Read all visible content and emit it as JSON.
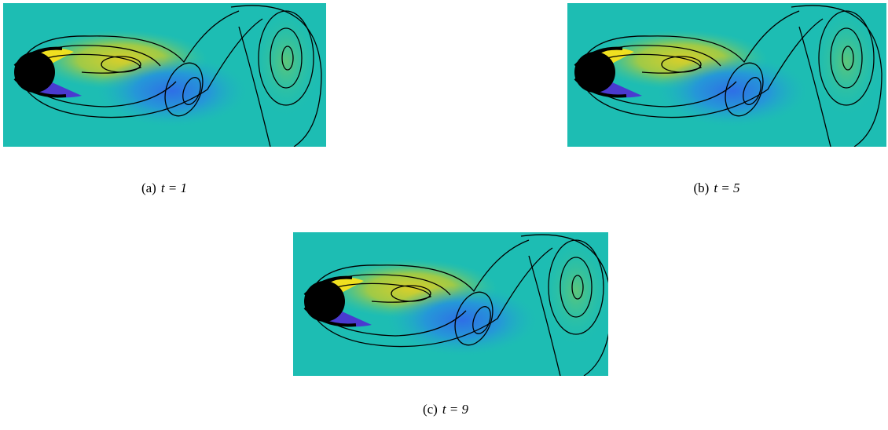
{
  "panels": [
    {
      "label": "(a)",
      "math": "t = 1"
    },
    {
      "label": "(b)",
      "math": "t = 5"
    },
    {
      "label": "(c)",
      "math": "t = 9"
    }
  ]
}
